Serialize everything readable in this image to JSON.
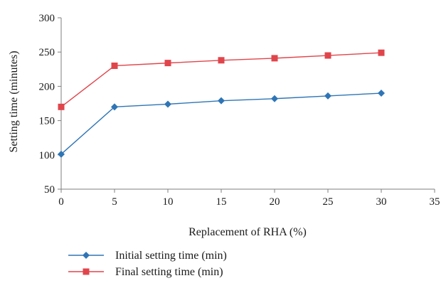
{
  "chart_data": {
    "type": "line",
    "xlabel": "Replacement of RHA (%)",
    "ylabel": "Setting time (minutes)",
    "xlim": [
      0,
      35
    ],
    "ylim": [
      50,
      300
    ],
    "x_ticks": [
      0,
      5,
      10,
      15,
      20,
      25,
      30,
      35
    ],
    "y_ticks": [
      50,
      100,
      150,
      200,
      250,
      300
    ],
    "x_tick_labels": [
      "0",
      "5",
      "10",
      "15",
      "20",
      "25",
      "30",
      "35"
    ],
    "y_tick_labels": [
      "50",
      "100",
      "150",
      "200",
      "250",
      "300"
    ],
    "grid": false,
    "legend_position": "bottom",
    "x": [
      0,
      5,
      10,
      15,
      20,
      25,
      30
    ],
    "series": [
      {
        "name": "Initial setting time (min)",
        "values": [
          101,
          170,
          174,
          179,
          182,
          186,
          190
        ],
        "color": "#2e75b6",
        "marker": "diamond"
      },
      {
        "name": "Final setting time (min)",
        "values": [
          170,
          230,
          234,
          238,
          241,
          245,
          249
        ],
        "color": "#e0454b",
        "marker": "square"
      }
    ]
  }
}
